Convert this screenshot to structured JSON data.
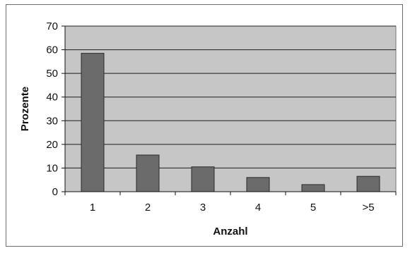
{
  "chart_data": {
    "type": "bar",
    "title": "",
    "xlabel": "Anzahl",
    "ylabel": "Prozente",
    "categories": [
      "1",
      "2",
      "3",
      "4",
      "5",
      ">5"
    ],
    "values": [
      58.5,
      15.5,
      10.5,
      6,
      3,
      6.5
    ],
    "ylim": [
      0,
      70
    ],
    "yticks": [
      0,
      10,
      20,
      30,
      40,
      50,
      60,
      70
    ],
    "grid": true,
    "legend": "none",
    "colors": {
      "bar": "#6b6b6b",
      "bar_edge": "#2b2b2b",
      "plot_background": "#c6c6c6",
      "gridline": "#1e1e1e",
      "frame": "#6e6e6e"
    }
  }
}
